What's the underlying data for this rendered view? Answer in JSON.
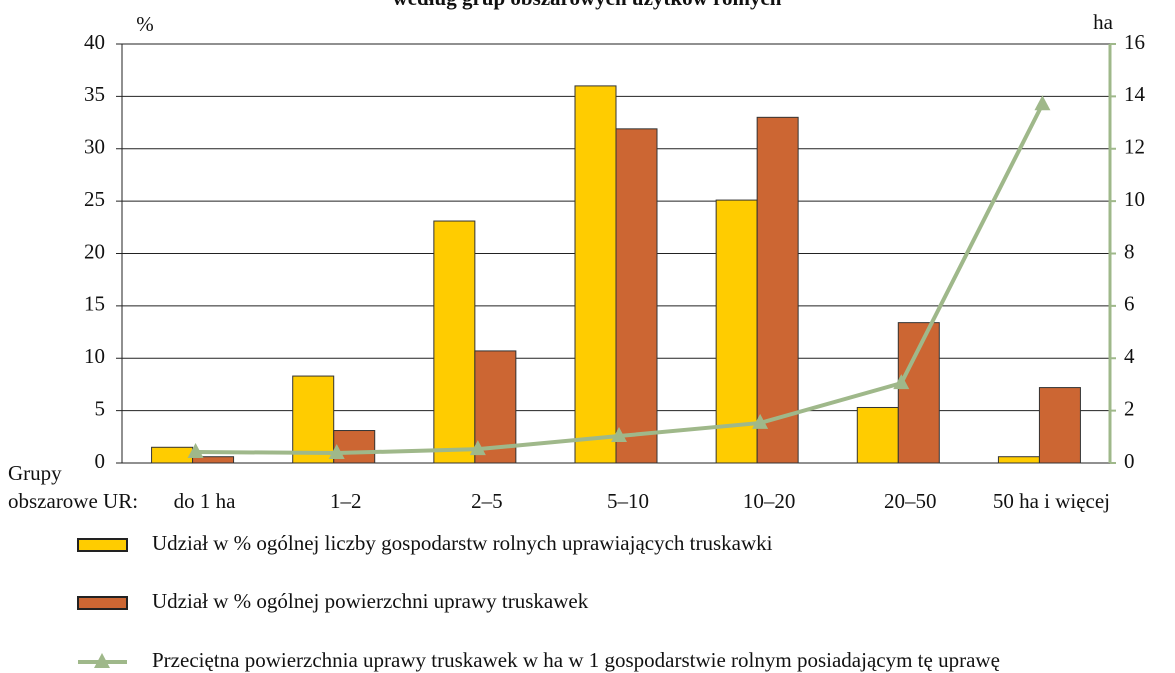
{
  "chart_data": {
    "type": "bar",
    "title": "według grup obszarowych użytków rolnych",
    "y_label": "%",
    "y2_label": "ha",
    "x_label_lines": [
      "Grupy",
      "obszarowe UR:"
    ],
    "categories": [
      "do 1 ha",
      "1–2",
      "2–5",
      "5–10",
      "10–20",
      "20–50",
      "50 ha i więcej"
    ],
    "series": [
      {
        "name": "Udział w % ogólnej liczby gospodarstw rolnych uprawiających truskawki",
        "color": "#ffcc00",
        "values": [
          1.5,
          8.3,
          23.1,
          36.0,
          25.1,
          5.3,
          0.6
        ]
      },
      {
        "name": "Udział w % ogólnej powierzchni uprawy truskawek",
        "color": "#cc6633",
        "values": [
          0.6,
          3.1,
          10.7,
          31.9,
          33.0,
          13.4,
          7.2
        ]
      },
      {
        "name": "Przeciętna powierzchnia uprawy truskawek w ha w 1 gospodarstwie rolnym posiadającym tę uprawę",
        "color": "#9fb88a",
        "type": "line",
        "axis": "y2",
        "values": [
          0.42,
          0.38,
          0.53,
          1.03,
          1.53,
          3.05,
          13.7
        ]
      }
    ],
    "ylim": [
      0,
      40
    ],
    "yticks": [
      0,
      5,
      10,
      15,
      20,
      25,
      30,
      35,
      40
    ],
    "y2lim": [
      0,
      16
    ],
    "y2ticks": [
      0,
      2,
      4,
      6,
      8,
      10,
      12,
      14,
      16
    ],
    "grid": true
  }
}
